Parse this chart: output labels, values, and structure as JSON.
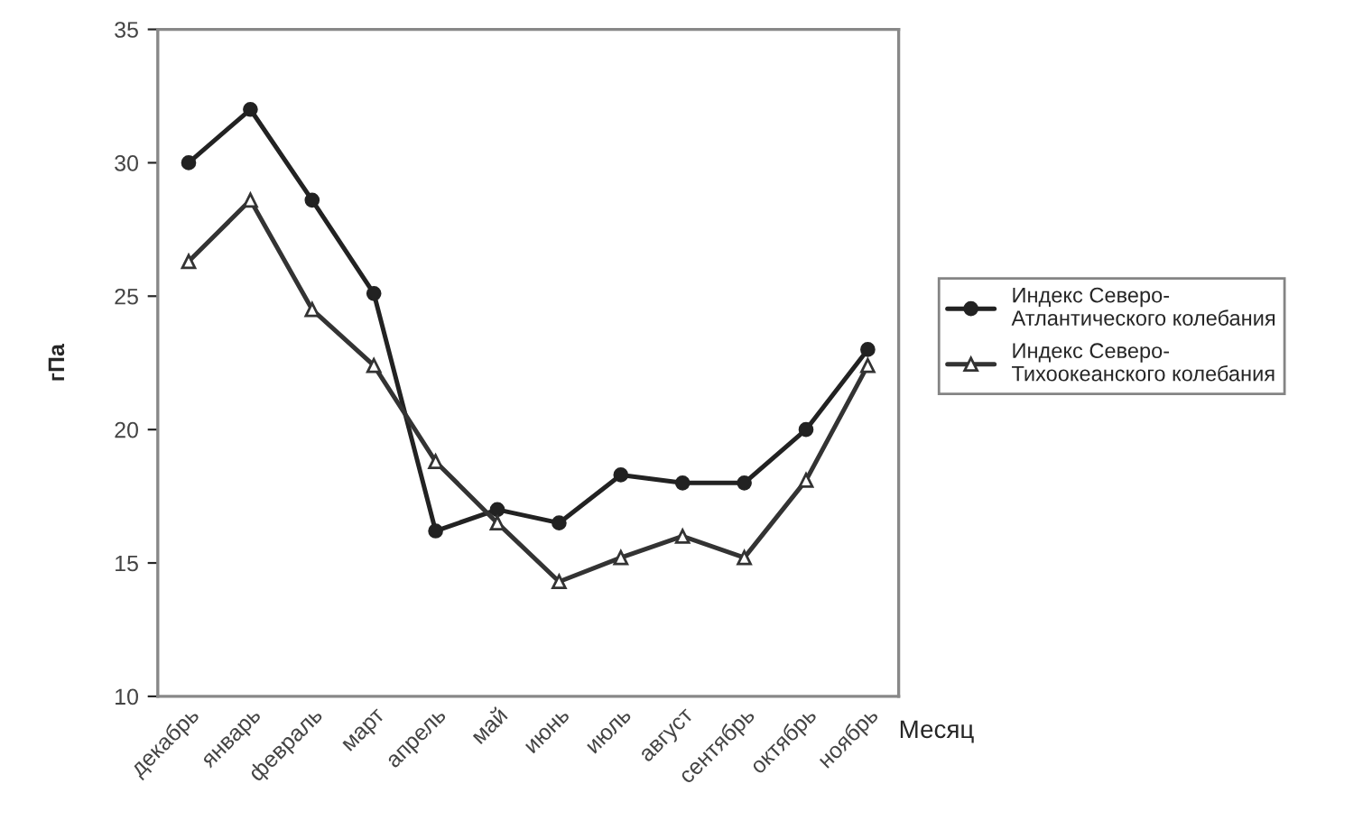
{
  "chart_data": {
    "type": "line",
    "xlabel": "Месяц",
    "ylabel": "гПа",
    "categories": [
      "декабрь",
      "январь",
      "февраль",
      "март",
      "апрель",
      "май",
      "июнь",
      "июль",
      "август",
      "сентябрь",
      "октябрь",
      "ноябрь"
    ],
    "series": [
      {
        "name": "Индекс Северо-\nАтлантического колебания",
        "color": "#222222",
        "marker": "circle",
        "values": [
          30.0,
          32.0,
          28.6,
          25.1,
          16.2,
          17.0,
          16.5,
          18.3,
          18.0,
          18.0,
          20.0,
          23.0
        ]
      },
      {
        "name": "Индекс Северо-\nТихоокеанского колебания",
        "color": "#333333",
        "marker": "triangle",
        "values": [
          26.3,
          28.6,
          24.5,
          22.4,
          18.8,
          16.5,
          14.3,
          15.2,
          16.0,
          15.2,
          18.1,
          22.4
        ]
      }
    ],
    "ylim": [
      10,
      35
    ],
    "yticks": [
      10,
      15,
      20,
      25,
      30,
      35
    ],
    "grid": false,
    "legend": "right",
    "line_style": "solid"
  }
}
